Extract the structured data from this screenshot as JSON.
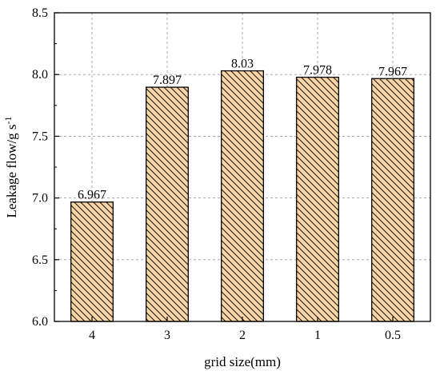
{
  "chart_data": {
    "type": "bar",
    "title": "",
    "xlabel": "grid size(mm)",
    "ylabel": "Leakage flow/g s",
    "ylabel_superscript": "-1",
    "categories": [
      "4",
      "3",
      "2",
      "1",
      "0.5"
    ],
    "values": [
      6.967,
      7.897,
      8.03,
      7.978,
      7.967
    ],
    "data_labels": [
      "6.967",
      "7.897",
      "8.03",
      "7.978",
      "7.967"
    ],
    "ylim": [
      6.0,
      8.5
    ],
    "yticks": [
      6.0,
      6.5,
      7.0,
      7.5,
      8.0,
      8.5
    ],
    "ytick_labels": [
      "6.0",
      "6.5",
      "7.0",
      "7.5",
      "8.0",
      "8.5"
    ],
    "grid": true,
    "bar_fill": "#fbd5a5",
    "bar_hatch": "diagonal",
    "bar_stroke": "#000000",
    "grid_color": "#a0a0a0"
  }
}
